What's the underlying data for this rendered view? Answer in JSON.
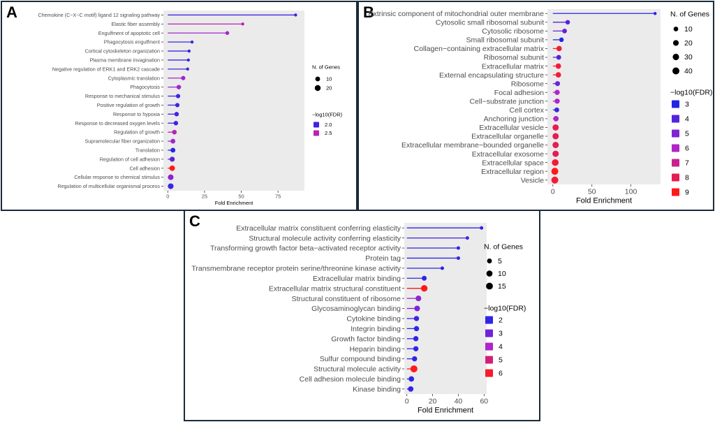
{
  "chart_data": [
    {
      "panel": "A",
      "type": "lollipop",
      "xlabel": "Fold Enrichment",
      "ylabel": "",
      "xlim": [
        -3,
        93
      ],
      "xticks": [
        0,
        25,
        50,
        75
      ],
      "categories": [
        "Chemokine (C−X−C motif) ligand 12 signaling pathway",
        "Elastic fiber assembly",
        "Engulfment of apoptotic cell",
        "Phagocytosis engulfment",
        "Cortical cytoskeleton organization",
        "Plasma membrane invagination",
        "Negative regulation of ERK1 and ERK2 cascade",
        "Cytoplasmic translation",
        "Phagocytosis",
        "Response to mechanical stimulus",
        "Positive regulation of growth",
        "Response to hypoxia",
        "Response to decreased oxygen levels",
        "Regulation of growth",
        "Supramolecular fiber organization",
        "Translation",
        "Regulation of cell adhesion",
        "Cell adhesion",
        "Cellular response to chemical stimulus",
        "Regulation of multicellular organismal process"
      ],
      "values": [
        87,
        51,
        40.5,
        16.5,
        14.5,
        14,
        13.5,
        10.5,
        7.5,
        7,
        6.5,
        6,
        5.5,
        4.5,
        3.5,
        3.5,
        3,
        3,
        2,
        2
      ],
      "genes": [
        4,
        4,
        5,
        4,
        4,
        4,
        4,
        7,
        8,
        7,
        7,
        8,
        8,
        9,
        10,
        10,
        12,
        16,
        17,
        18
      ],
      "fdr": [
        2.0,
        2.5,
        2.4,
        2.0,
        2.0,
        2.0,
        2.0,
        2.4,
        2.4,
        2.0,
        2.0,
        2.0,
        2.0,
        2.5,
        2.4,
        1.9,
        2.1,
        3.0,
        2.3,
        2.0
      ],
      "size_legend": {
        "title": "N. of Genes",
        "values": [
          10,
          20
        ]
      },
      "color_legend": {
        "title": "−log10(FDR)",
        "values": [
          2.0,
          2.5
        ],
        "labels": [
          "2.0",
          "2.5"
        ]
      }
    },
    {
      "panel": "B",
      "type": "lollipop",
      "xlabel": "Fold Enrichment",
      "ylabel": "",
      "xlim": [
        -7,
        138
      ],
      "xticks": [
        0,
        50,
        100
      ],
      "categories": [
        "Extrinsic component of mitochondrial outer membrane",
        "Cytosolic small ribosomal subunit",
        "Cytosolic ribosome",
        "Small ribosomal subunit",
        "Collagen−containing extracellular matrix",
        "Ribosomal subunit",
        "Extracellular matrix",
        "External encapsulating structure",
        "Ribosome",
        "Focal adhesion",
        "Cell−substrate junction",
        "Cell cortex",
        "Anchoring junction",
        "Extracellular vesicle",
        "Extracellular organelle",
        "Extracellular membrane−bounded organelle",
        "Extracellular exosome",
        "Extracellular space",
        "Extracellular region",
        "Vesicle"
      ],
      "values": [
        131,
        19,
        15,
        11,
        8,
        7.5,
        7,
        7,
        6,
        5.5,
        5.5,
        5,
        4,
        3.5,
        3.5,
        3.5,
        3.5,
        3,
        2.5,
        2.5
      ],
      "genes": [
        4,
        9,
        11,
        9,
        16,
        11,
        17,
        17,
        12,
        14,
        14,
        11,
        16,
        28,
        28,
        28,
        28,
        35,
        40,
        40
      ],
      "fdr": [
        3,
        4,
        4.5,
        3,
        8.5,
        4,
        8.5,
        8.5,
        4.5,
        6,
        6,
        3.5,
        6,
        8,
        8,
        8,
        8,
        8.5,
        9,
        8.5
      ],
      "size_legend": {
        "title": "N. of Genes",
        "values": [
          10,
          20,
          30,
          40
        ]
      },
      "color_legend": {
        "title": "−log10(FDR)",
        "values": [
          3,
          4,
          5,
          6,
          7,
          8,
          9
        ],
        "labels": [
          "3",
          "4",
          "5",
          "6",
          "7",
          "8",
          "9"
        ]
      }
    },
    {
      "panel": "C",
      "type": "lollipop",
      "xlabel": "Fold Enrichment",
      "ylabel": "",
      "xlim": [
        -2,
        62
      ],
      "xticks": [
        0,
        20,
        40,
        60
      ],
      "categories": [
        "Extracellular matrix constituent conferring elasticity",
        "Structural molecule activity conferring elasticity",
        "Transforming growth factor beta−activated receptor activity",
        "Protein tag",
        "Transmembrane receptor protein serine/threonine kinase activity",
        "Extracellular matrix binding",
        "Extracellular matrix structural constituent",
        "Structural constituent of ribosome",
        "Glycosaminoglycan binding",
        "Cytokine binding",
        "Integrin binding",
        "Growth factor binding",
        "Heparin binding",
        "Sulfur compound binding",
        "Structural molecule activity",
        "Cell adhesion molecule binding",
        "Kinase binding"
      ],
      "values": [
        58,
        47,
        40,
        40,
        27.5,
        13.5,
        13.5,
        9,
        8,
        7.5,
        7.5,
        7,
        7,
        6,
        5.5,
        3.5,
        3
      ],
      "genes": [
        3,
        3,
        3,
        3,
        3,
        5,
        13,
        8,
        8,
        6,
        6,
        6,
        6,
        6,
        16,
        7,
        7
      ],
      "fdr": [
        2.0,
        2.2,
        2.0,
        2.0,
        1.8,
        2.0,
        6.2,
        3.5,
        3.2,
        2.2,
        2.0,
        2.0,
        2.0,
        2.0,
        6.2,
        2.0,
        2.0
      ],
      "size_legend": {
        "title": "N. of Genes",
        "values": [
          5,
          10,
          15
        ]
      },
      "color_legend": {
        "title": "−log10(FDR)",
        "values": [
          2,
          3,
          4,
          5,
          6
        ],
        "labels": [
          "2",
          "3",
          "4",
          "5",
          "6"
        ]
      }
    }
  ],
  "panels": {
    "A": {
      "label": "A"
    },
    "B": {
      "label": "B"
    },
    "C": {
      "label": "C"
    }
  },
  "colors": {
    "low": "#2424e8",
    "mid": "#b024c8",
    "high": "#ff1a1a",
    "plot_bg": "#ebebeb",
    "border": "#1a2a3a"
  }
}
